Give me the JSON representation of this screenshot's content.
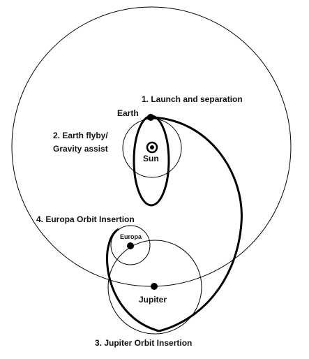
{
  "diagram": {
    "labels": {
      "launch": "1. Launch and separation",
      "earth": "Earth",
      "flyby_line1": "2. Earth flyby/",
      "flyby_line2": "Gravity assist",
      "sun": "Sun",
      "europa_insertion": "4. Europa Orbit Insertion",
      "europa": "Europa",
      "jupiter": "Jupiter",
      "jupiter_insertion": "3.  Jupiter Orbit Insertion"
    },
    "colors": {
      "background": "#ffffff",
      "line": "#000000",
      "text": "#111111"
    }
  }
}
